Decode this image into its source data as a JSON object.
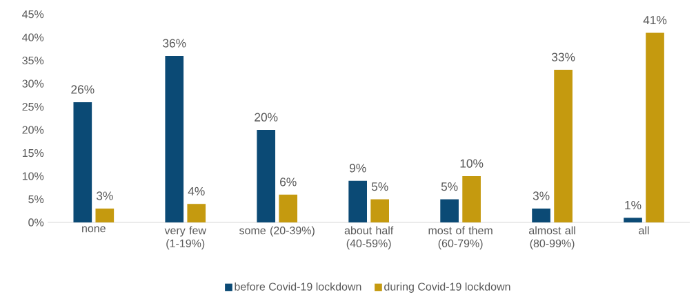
{
  "chart_data": {
    "type": "bar",
    "categories": [
      "none",
      "very few (1-19%)",
      "some (20-39%)",
      "about half (40-59%)",
      "most of them (60-79%)",
      "almost all (80-99%)",
      "all"
    ],
    "series": [
      {
        "name": "before Covid-19 lockdown",
        "color": "#0b4a75",
        "values": [
          26,
          36,
          20,
          9,
          5,
          3,
          1
        ],
        "value_labels": [
          "26%",
          "36%",
          "20%",
          "9%",
          "5%",
          "3%",
          "1%"
        ]
      },
      {
        "name": "during Covid-19 lockdown",
        "color": "#c59a0f",
        "values": [
          3,
          4,
          6,
          5,
          10,
          33,
          41
        ],
        "value_labels": [
          "3%",
          "4%",
          "6%",
          "5%",
          "10%",
          "33%",
          "41%"
        ]
      }
    ],
    "ylim": [
      0,
      45
    ],
    "yticks": [
      {
        "value": 0,
        "label": "0%"
      },
      {
        "value": 5,
        "label": "5%"
      },
      {
        "value": 10,
        "label": "10%"
      },
      {
        "value": 15,
        "label": "15%"
      },
      {
        "value": 20,
        "label": "20%"
      },
      {
        "value": 25,
        "label": "25%"
      },
      {
        "value": 30,
        "label": "30%"
      },
      {
        "value": 35,
        "label": "35%"
      },
      {
        "value": 40,
        "label": "40%"
      },
      {
        "value": 45,
        "label": "45%"
      }
    ],
    "grid": false,
    "legend": "bottom"
  }
}
